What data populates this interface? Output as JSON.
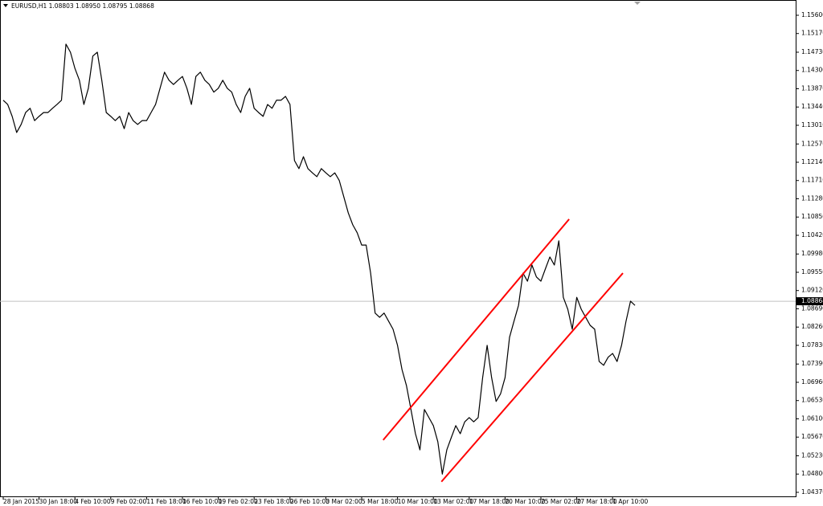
{
  "chart_data": {
    "type": "line",
    "title": "EURUSD,H1  1.08803 1.08950 1.08795 1.08868",
    "color": "#000000",
    "grid": false,
    "categories": [
      "28 Jan 2015",
      null,
      null,
      null,
      null,
      null,
      null,
      null,
      "30 Jan 18:00",
      null,
      null,
      null,
      null,
      null,
      null,
      null,
      "4 Feb 10:00",
      null,
      null,
      null,
      null,
      null,
      null,
      null,
      "9 Feb 02:00",
      null,
      null,
      null,
      null,
      null,
      null,
      null,
      "11 Feb 18:00",
      null,
      null,
      null,
      null,
      null,
      null,
      null,
      "16 Feb 10:00",
      null,
      null,
      null,
      null,
      null,
      null,
      null,
      "19 Feb 02:00",
      null,
      null,
      null,
      null,
      null,
      null,
      null,
      "23 Feb 18:00",
      null,
      null,
      null,
      null,
      null,
      null,
      null,
      "26 Feb 10:00",
      null,
      null,
      null,
      null,
      null,
      null,
      null,
      "3 Mar 02:00",
      null,
      null,
      null,
      null,
      null,
      null,
      null,
      "5 Mar 18:00",
      null,
      null,
      null,
      null,
      null,
      null,
      null,
      "10 Mar 10:00",
      null,
      null,
      null,
      null,
      null,
      null,
      null,
      "13 Mar 02:00",
      null,
      null,
      null,
      null,
      null,
      null,
      null,
      "17 Mar 18:00",
      null,
      null,
      null,
      null,
      null,
      null,
      null,
      "20 Mar 10:00",
      null,
      null,
      null,
      null,
      null,
      null,
      null,
      "25 Mar 02:00",
      null,
      null,
      null,
      null,
      null,
      null,
      null,
      "27 Mar 18:00",
      null,
      null,
      null,
      null,
      null,
      null,
      null,
      "1 Apr 10:00",
      null,
      null,
      null,
      null,
      null
    ],
    "series": [
      {
        "name": "EURUSD,H1",
        "color": "#000000",
        "values": [
          1.136,
          1.135,
          1.1322,
          1.1284,
          1.1303,
          1.1331,
          1.1341,
          1.1312,
          1.1322,
          1.1331,
          1.1331,
          1.1341,
          1.135,
          1.136,
          1.1492,
          1.1473,
          1.1435,
          1.1407,
          1.135,
          1.1388,
          1.1464,
          1.1473,
          1.1407,
          1.1331,
          1.1322,
          1.1312,
          1.1322,
          1.1293,
          1.1331,
          1.1312,
          1.1303,
          1.1312,
          1.1312,
          1.1331,
          1.135,
          1.1388,
          1.1426,
          1.1407,
          1.1397,
          1.1407,
          1.1416,
          1.1388,
          1.135,
          1.1416,
          1.1426,
          1.1407,
          1.1397,
          1.1379,
          1.1388,
          1.1407,
          1.1388,
          1.1379,
          1.135,
          1.1331,
          1.1369,
          1.1388,
          1.1341,
          1.1331,
          1.1322,
          1.135,
          1.1341,
          1.136,
          1.136,
          1.1369,
          1.135,
          1.1218,
          1.1199,
          1.1227,
          1.1199,
          1.1189,
          1.118,
          1.1199,
          1.1189,
          1.118,
          1.1189,
          1.1171,
          1.1133,
          1.1095,
          1.1067,
          1.1048,
          1.1019,
          1.1019,
          1.0953,
          1.0859,
          1.0849,
          1.0859,
          1.084,
          1.0821,
          1.0783,
          1.0726,
          1.0688,
          1.0632,
          1.0575,
          1.0537,
          1.0632,
          1.0613,
          1.0594,
          1.0556,
          1.048,
          1.0537,
          1.0566,
          1.0594,
          1.0575,
          1.0603,
          1.0613,
          1.0603,
          1.0613,
          1.0707,
          1.0783,
          1.0707,
          1.0651,
          1.0669,
          1.0707,
          1.0802,
          1.084,
          1.0877,
          1.0953,
          1.0934,
          1.0972,
          1.0944,
          1.0934,
          1.0963,
          1.0991,
          1.0972,
          1.1029,
          1.0896,
          1.0868,
          1.0821,
          1.0896,
          1.0868,
          1.0849,
          1.083,
          1.0821,
          1.0745,
          1.0736,
          1.0755,
          1.0764,
          1.0745,
          1.0783,
          1.084,
          1.0887,
          1.0877
        ]
      }
    ],
    "ylim": [
      1.04275,
      1.15959
    ],
    "yticks": [
      {
        "value": 1.156,
        "label": "1.15600"
      },
      {
        "value": 1.1517,
        "label": "1.15170"
      },
      {
        "value": 1.1473,
        "label": "1.14730"
      },
      {
        "value": 1.143,
        "label": "1.14300"
      },
      {
        "value": 1.1387,
        "label": "1.13870"
      },
      {
        "value": 1.1344,
        "label": "1.13440"
      },
      {
        "value": 1.1301,
        "label": "1.13010"
      },
      {
        "value": 1.1257,
        "label": "1.12570"
      },
      {
        "value": 1.1214,
        "label": "1.12140"
      },
      {
        "value": 1.1171,
        "label": "1.11710"
      },
      {
        "value": 1.1128,
        "label": "1.11280"
      },
      {
        "value": 1.1085,
        "label": "1.10850"
      },
      {
        "value": 1.1042,
        "label": "1.10420"
      },
      {
        "value": 1.0998,
        "label": "1.09980"
      },
      {
        "value": 1.0955,
        "label": "1.09550"
      },
      {
        "value": 1.0912,
        "label": "1.09120"
      },
      {
        "value": 1.0869,
        "label": "1.08690"
      },
      {
        "value": 1.0826,
        "label": "1.08260"
      },
      {
        "value": 1.0783,
        "label": "1.07830"
      },
      {
        "value": 1.0739,
        "label": "1.07390"
      },
      {
        "value": 1.0696,
        "label": "1.06960"
      },
      {
        "value": 1.0653,
        "label": "1.06530"
      },
      {
        "value": 1.061,
        "label": "1.06100"
      },
      {
        "value": 1.0567,
        "label": "1.05670"
      },
      {
        "value": 1.0523,
        "label": "1.05230"
      },
      {
        "value": 1.048,
        "label": "1.04800"
      },
      {
        "value": 1.0437,
        "label": "1.04370"
      }
    ],
    "last_price": {
      "value": 1.08868,
      "label": "1.08868"
    },
    "trendlines": [
      {
        "color": "#ff0000",
        "x1": 84.8,
        "y1": 1.056,
        "x2": 126.3,
        "y2": 1.108
      },
      {
        "color": "#ff0000",
        "x1": 97.8,
        "y1": 1.0462,
        "x2": 138.3,
        "y2": 1.0953
      }
    ]
  }
}
